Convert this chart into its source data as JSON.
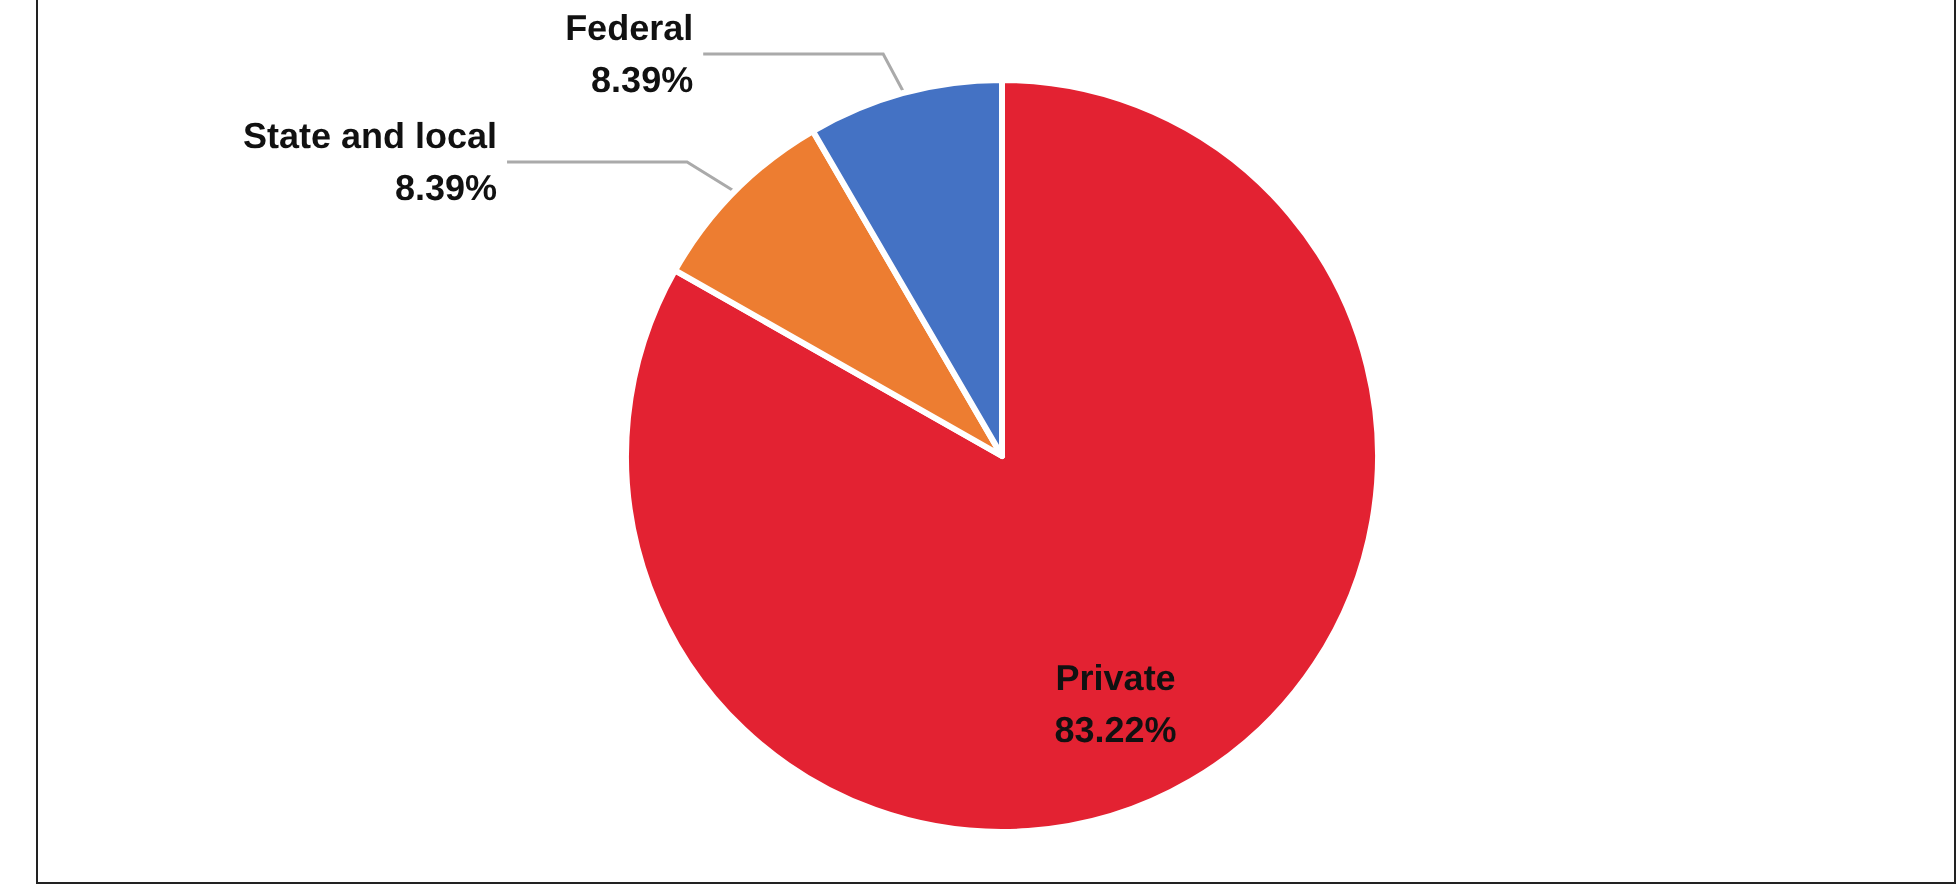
{
  "chart_data": {
    "type": "pie",
    "categories": [
      "Private",
      "State and local",
      "Federal"
    ],
    "values": [
      83.22,
      8.39,
      8.39
    ],
    "colors": [
      "#e32232",
      "#ed7d31",
      "#4472c4"
    ],
    "value_labels": [
      "83.22%",
      "8.39%",
      "8.39%"
    ],
    "legend": false
  }
}
